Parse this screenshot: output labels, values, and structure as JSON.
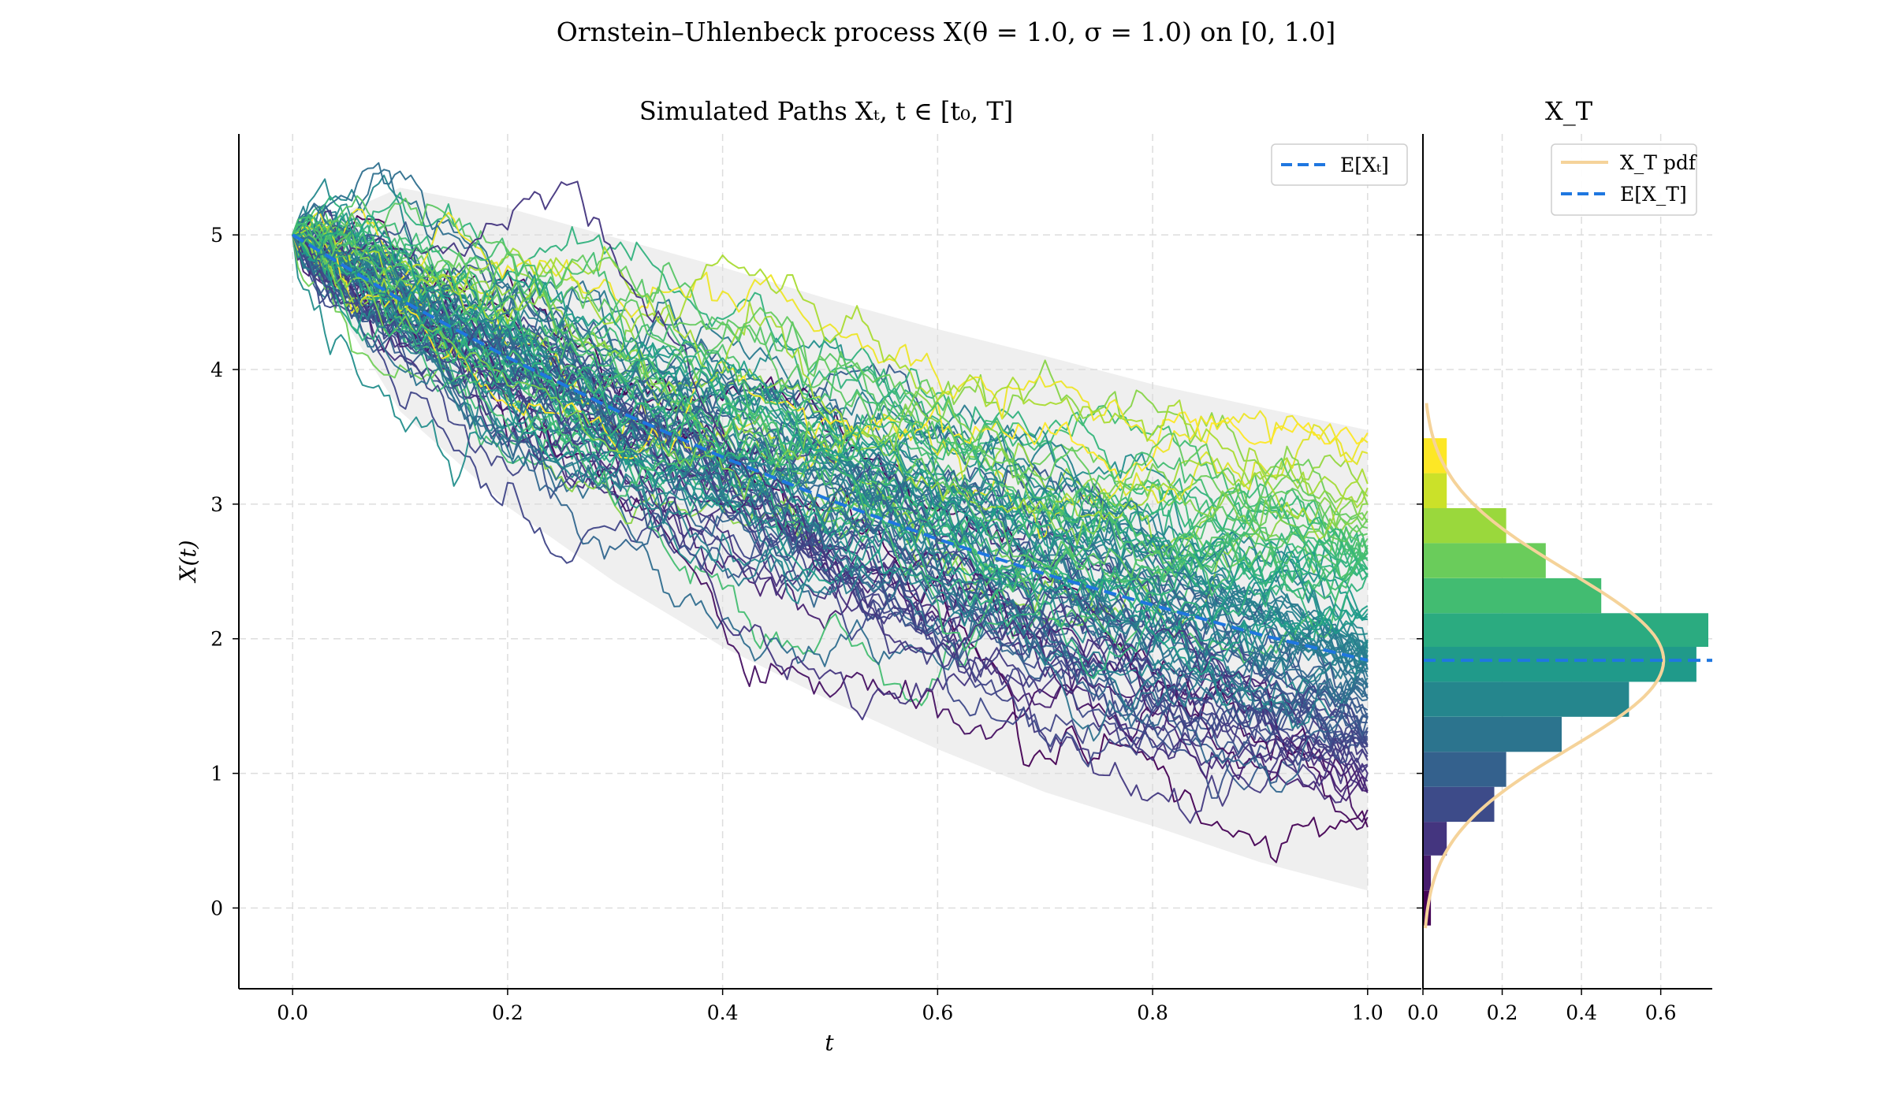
{
  "figure": {
    "suptitle": "Ornstein–Uhlenbeck process X(θ = 1.0, σ = 1.0) on [0, 1.0]"
  },
  "main_panel": {
    "title": "Simulated Paths Xₜ, t ∈ [t₀, T]",
    "xlabel": "t",
    "ylabel": "X(t)",
    "legend_mean": "E[Xₜ]"
  },
  "side_panel": {
    "title": "X_T",
    "legend_pdf": "X_T pdf",
    "legend_mean": "E[X_T]"
  },
  "colors": {
    "mean_line": "#1f77e0",
    "pdf_line": "#f5d39a",
    "band": "#dcdcdc",
    "grid": "#dddddd",
    "viridis": [
      "#440154",
      "#482878",
      "#3e4989",
      "#31688e",
      "#26828e",
      "#1f9e89",
      "#35b779",
      "#6ece58",
      "#b5de2b",
      "#fde725"
    ]
  },
  "chart_data": [
    {
      "type": "line",
      "title": "Simulated Paths Xₜ, t ∈ [t₀, T]",
      "xlabel": "t",
      "ylabel": "X(t)",
      "xlim": [
        -0.05,
        1.05
      ],
      "ylim": [
        -0.6,
        5.75
      ],
      "x_ticks": [
        0.0,
        0.2,
        0.4,
        0.6,
        0.8,
        1.0
      ],
      "x_tick_labels": [
        "0.0",
        "0.2",
        "0.4",
        "0.6",
        "0.8",
        "1.0"
      ],
      "y_ticks": [
        0,
        1,
        2,
        3,
        4,
        5
      ],
      "y_tick_labels": [
        "0",
        "1",
        "2",
        "3",
        "4",
        "5"
      ],
      "grid": true,
      "legend": "top-right",
      "process": {
        "theta": 1.0,
        "sigma": 1.0,
        "x0": 5.0,
        "mu": 0.0,
        "t0": 0.0,
        "T": 1.0
      },
      "n_paths": 100,
      "expectation": {
        "name": "E[Xₜ]",
        "x": [
          0.0,
          0.1,
          0.2,
          0.3,
          0.4,
          0.5,
          0.6,
          0.7,
          0.8,
          0.9,
          1.0
        ],
        "y": [
          5.0,
          4.52,
          4.09,
          3.7,
          3.35,
          3.03,
          2.74,
          2.48,
          2.25,
          2.03,
          1.84
        ]
      },
      "band": {
        "x": [
          0.0,
          0.1,
          0.2,
          0.3,
          0.4,
          0.5,
          0.6,
          0.7,
          0.8,
          0.9,
          1.0
        ],
        "upper": [
          5.0,
          5.35,
          5.2,
          4.98,
          4.76,
          4.52,
          4.3,
          4.1,
          3.89,
          3.72,
          3.55
        ],
        "lower": [
          5.0,
          3.69,
          2.98,
          2.42,
          1.94,
          1.54,
          1.18,
          0.86,
          0.61,
          0.34,
          0.13
        ]
      }
    },
    {
      "type": "bar",
      "orientation": "horizontal",
      "title": "X_T",
      "xlim": [
        0,
        0.73
      ],
      "ylim": [
        -0.6,
        5.75
      ],
      "x_ticks": [
        0.0,
        0.2,
        0.4,
        0.6
      ],
      "x_tick_labels": [
        "0.0",
        "0.2",
        "0.4",
        "0.6"
      ],
      "legend": "top-right",
      "bin_edges": [
        -0.13,
        0.13,
        0.39,
        0.64,
        0.9,
        1.16,
        1.42,
        1.68,
        1.94,
        2.19,
        2.45,
        2.71,
        2.97,
        3.23,
        3.49
      ],
      "density": [
        0.02,
        0.02,
        0.06,
        0.18,
        0.21,
        0.35,
        0.52,
        0.69,
        0.72,
        0.45,
        0.31,
        0.21,
        0.06,
        0.06
      ],
      "pdf": {
        "name": "X_T pdf",
        "mean": 1.84,
        "std": 0.657
      },
      "expectation": {
        "name": "E[X_T]",
        "value": 1.84
      }
    }
  ]
}
